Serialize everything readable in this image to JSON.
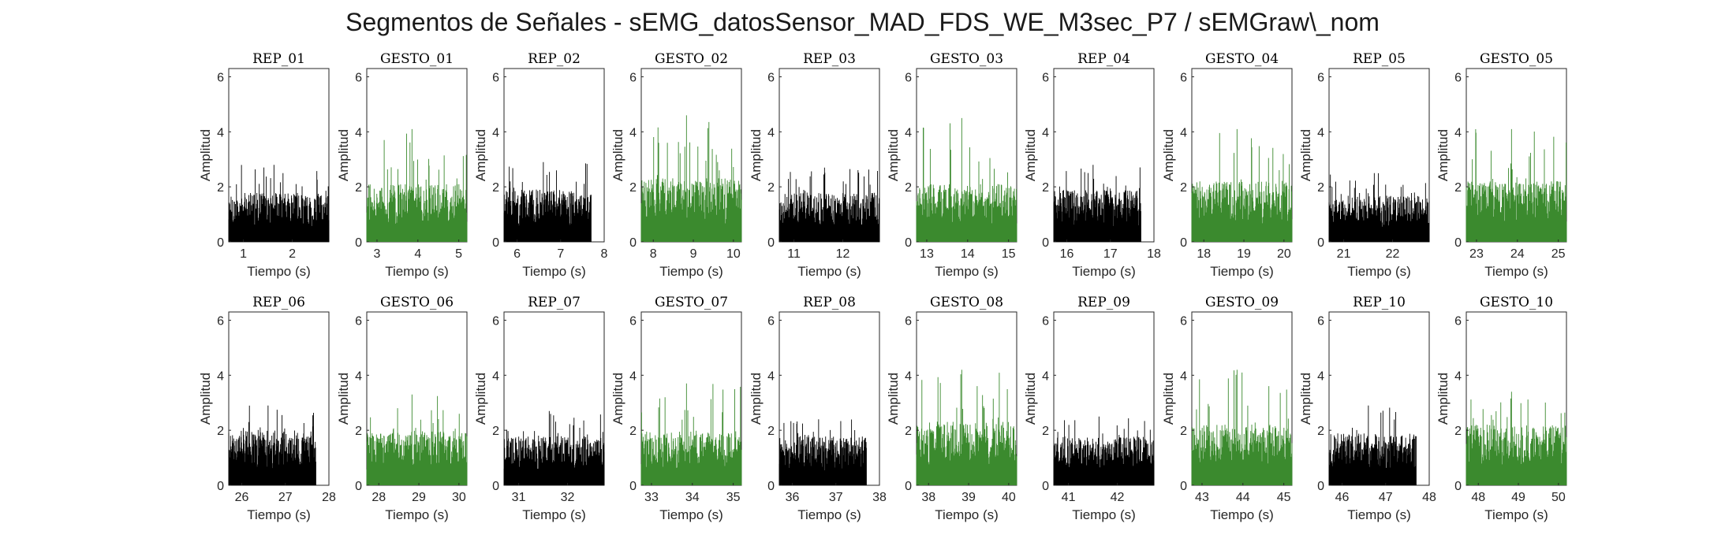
{
  "figure": {
    "title": "Segmentos de Señales - sEMG_datosSensor_MAD_FDS_WE_M3sec_P7 / sEMGraw\\_nom"
  },
  "colors": {
    "rep": "#000000",
    "gesto": "#3b8a2e",
    "axis": "#262626"
  },
  "chart_data": [
    {
      "type": "area",
      "title": "REP_01",
      "xlabel": "Tiempo (s)",
      "ylabel": "Amplitud",
      "xlim": [
        0.7,
        2.75
      ],
      "xticks": [
        1,
        2
      ],
      "ylim": [
        0,
        6.3
      ],
      "yticks": [
        0,
        2,
        4,
        6
      ],
      "color": "#000000",
      "data_range": [
        0.7,
        2.75
      ],
      "typical": 1.7,
      "peak": 2.8
    },
    {
      "type": "area",
      "title": "GESTO_01",
      "xlabel": "Tiempo (s)",
      "ylabel": "Amplitud",
      "xlim": [
        2.75,
        5.2
      ],
      "xticks": [
        3,
        4,
        5
      ],
      "ylim": [
        0,
        6.3
      ],
      "yticks": [
        0,
        2,
        4,
        6
      ],
      "color": "#3b8a2e",
      "data_range": [
        2.75,
        5.2
      ],
      "typical": 2.0,
      "peak": 4.1
    },
    {
      "type": "area",
      "title": "REP_02",
      "xlabel": "Tiempo (s)",
      "ylabel": "Amplitud",
      "xlim": [
        5.7,
        8
      ],
      "xticks": [
        6,
        7,
        8
      ],
      "ylim": [
        0,
        6.3
      ],
      "yticks": [
        0,
        2,
        4,
        6
      ],
      "color": "#000000",
      "data_range": [
        5.7,
        7.7
      ],
      "typical": 1.8,
      "peak": 2.9
    },
    {
      "type": "area",
      "title": "GESTO_02",
      "xlabel": "Tiempo (s)",
      "ylabel": "Amplitud",
      "xlim": [
        7.7,
        10.2
      ],
      "xticks": [
        8,
        9,
        10
      ],
      "ylim": [
        0,
        6.3
      ],
      "yticks": [
        0,
        2,
        4,
        6
      ],
      "color": "#3b8a2e",
      "data_range": [
        7.7,
        10.2
      ],
      "typical": 2.2,
      "peak": 4.6
    },
    {
      "type": "area",
      "title": "REP_03",
      "xlabel": "Tiempo (s)",
      "ylabel": "Amplitud",
      "xlim": [
        10.7,
        12.75
      ],
      "xticks": [
        11,
        12
      ],
      "ylim": [
        0,
        6.3
      ],
      "yticks": [
        0,
        2,
        4,
        6
      ],
      "color": "#000000",
      "data_range": [
        10.7,
        12.75
      ],
      "typical": 1.7,
      "peak": 2.7
    },
    {
      "type": "area",
      "title": "GESTO_03",
      "xlabel": "Tiempo (s)",
      "ylabel": "Amplitud",
      "xlim": [
        12.75,
        15.2
      ],
      "xticks": [
        13,
        14,
        15
      ],
      "ylim": [
        0,
        6.3
      ],
      "yticks": [
        0,
        2,
        4,
        6
      ],
      "color": "#3b8a2e",
      "data_range": [
        12.75,
        15.2
      ],
      "typical": 2.0,
      "peak": 4.5
    },
    {
      "type": "area",
      "title": "REP_04",
      "xlabel": "Tiempo (s)",
      "ylabel": "Amplitud",
      "xlim": [
        15.7,
        18
      ],
      "xticks": [
        16,
        17,
        18
      ],
      "ylim": [
        0,
        6.3
      ],
      "yticks": [
        0,
        2,
        4,
        6
      ],
      "color": "#000000",
      "data_range": [
        15.7,
        17.7
      ],
      "typical": 1.8,
      "peak": 2.8
    },
    {
      "type": "area",
      "title": "GESTO_04",
      "xlabel": "Tiempo (s)",
      "ylabel": "Amplitud",
      "xlim": [
        17.7,
        20.2
      ],
      "xticks": [
        18,
        19,
        20
      ],
      "ylim": [
        0,
        6.3
      ],
      "yticks": [
        0,
        2,
        4,
        6
      ],
      "color": "#3b8a2e",
      "data_range": [
        17.7,
        20.2
      ],
      "typical": 2.1,
      "peak": 4.1
    },
    {
      "type": "area",
      "title": "REP_05",
      "xlabel": "Tiempo (s)",
      "ylabel": "Amplitud",
      "xlim": [
        20.7,
        22.75
      ],
      "xticks": [
        21,
        22
      ],
      "ylim": [
        0,
        6.3
      ],
      "yticks": [
        0,
        2,
        4,
        6
      ],
      "color": "#000000",
      "data_range": [
        20.7,
        22.75
      ],
      "typical": 1.6,
      "peak": 2.5
    },
    {
      "type": "area",
      "title": "GESTO_05",
      "xlabel": "Tiempo (s)",
      "ylabel": "Amplitud",
      "xlim": [
        22.75,
        25.2
      ],
      "xticks": [
        23,
        24,
        25
      ],
      "ylim": [
        0,
        6.3
      ],
      "yticks": [
        0,
        2,
        4,
        6
      ],
      "color": "#3b8a2e",
      "data_range": [
        22.75,
        25.2
      ],
      "typical": 2.1,
      "peak": 4.1
    },
    {
      "type": "area",
      "title": "REP_06",
      "xlabel": "Tiempo (s)",
      "ylabel": "Amplitud",
      "xlim": [
        25.7,
        28
      ],
      "xticks": [
        26,
        27,
        28
      ],
      "ylim": [
        0,
        6.3
      ],
      "yticks": [
        0,
        2,
        4,
        6
      ],
      "color": "#000000",
      "data_range": [
        25.7,
        27.7
      ],
      "typical": 1.9,
      "peak": 2.9
    },
    {
      "type": "area",
      "title": "GESTO_06",
      "xlabel": "Tiempo (s)",
      "ylabel": "Amplitud",
      "xlim": [
        27.7,
        30.2
      ],
      "xticks": [
        28,
        29,
        30
      ],
      "ylim": [
        0,
        6.3
      ],
      "yticks": [
        0,
        2,
        4,
        6
      ],
      "color": "#3b8a2e",
      "data_range": [
        27.7,
        30.2
      ],
      "typical": 1.9,
      "peak": 3.3
    },
    {
      "type": "area",
      "title": "REP_07",
      "xlabel": "Tiempo (s)",
      "ylabel": "Amplitud",
      "xlim": [
        30.7,
        32.75
      ],
      "xticks": [
        31,
        32
      ],
      "ylim": [
        0,
        6.3
      ],
      "yticks": [
        0,
        2,
        4,
        6
      ],
      "color": "#000000",
      "data_range": [
        30.7,
        32.75
      ],
      "typical": 1.7,
      "peak": 2.7
    },
    {
      "type": "area",
      "title": "GESTO_07",
      "xlabel": "Tiempo (s)",
      "ylabel": "Amplitud",
      "xlim": [
        32.75,
        35.2
      ],
      "xticks": [
        33,
        34,
        35
      ],
      "ylim": [
        0,
        6.3
      ],
      "yticks": [
        0,
        2,
        4,
        6
      ],
      "color": "#3b8a2e",
      "data_range": [
        32.75,
        35.2
      ],
      "typical": 1.9,
      "peak": 3.7
    },
    {
      "type": "area",
      "title": "REP_08",
      "xlabel": "Tiempo (s)",
      "ylabel": "Amplitud",
      "xlim": [
        35.7,
        38
      ],
      "xticks": [
        36,
        37,
        38
      ],
      "ylim": [
        0,
        6.3
      ],
      "yticks": [
        0,
        2,
        4,
        6
      ],
      "color": "#000000",
      "data_range": [
        35.7,
        37.7
      ],
      "typical": 1.7,
      "peak": 2.4
    },
    {
      "type": "area",
      "title": "GESTO_08",
      "xlabel": "Tiempo (s)",
      "ylabel": "Amplitud",
      "xlim": [
        37.7,
        40.2
      ],
      "xticks": [
        38,
        39,
        40
      ],
      "ylim": [
        0,
        6.3
      ],
      "yticks": [
        0,
        2,
        4,
        6
      ],
      "color": "#3b8a2e",
      "data_range": [
        37.7,
        40.2
      ],
      "typical": 2.2,
      "peak": 4.2
    },
    {
      "type": "area",
      "title": "REP_09",
      "xlabel": "Tiempo (s)",
      "ylabel": "Amplitud",
      "xlim": [
        40.7,
        42.75
      ],
      "xticks": [
        41,
        42
      ],
      "ylim": [
        0,
        6.3
      ],
      "yticks": [
        0,
        2,
        4,
        6
      ],
      "color": "#000000",
      "data_range": [
        40.7,
        42.75
      ],
      "typical": 1.7,
      "peak": 2.5
    },
    {
      "type": "area",
      "title": "GESTO_09",
      "xlabel": "Tiempo (s)",
      "ylabel": "Amplitud",
      "xlim": [
        42.75,
        45.2
      ],
      "xticks": [
        43,
        44,
        45
      ],
      "ylim": [
        0,
        6.3
      ],
      "yticks": [
        0,
        2,
        4,
        6
      ],
      "color": "#3b8a2e",
      "data_range": [
        42.75,
        45.2
      ],
      "typical": 2.1,
      "peak": 4.2
    },
    {
      "type": "area",
      "title": "REP_10",
      "xlabel": "Tiempo (s)",
      "ylabel": "Amplitud",
      "xlim": [
        45.7,
        48
      ],
      "xticks": [
        46,
        47,
        48
      ],
      "ylim": [
        0,
        6.3
      ],
      "yticks": [
        0,
        2,
        4,
        6
      ],
      "color": "#000000",
      "data_range": [
        45.7,
        47.7
      ],
      "typical": 1.8,
      "peak": 2.9
    },
    {
      "type": "area",
      "title": "GESTO_10",
      "xlabel": "Tiempo (s)",
      "ylabel": "Amplitud",
      "xlim": [
        47.7,
        50.2
      ],
      "xticks": [
        48,
        49,
        50
      ],
      "ylim": [
        0,
        6.3
      ],
      "yticks": [
        0,
        2,
        4,
        6
      ],
      "color": "#3b8a2e",
      "data_range": [
        47.7,
        50.2
      ],
      "typical": 2.1,
      "peak": 3.4
    }
  ]
}
